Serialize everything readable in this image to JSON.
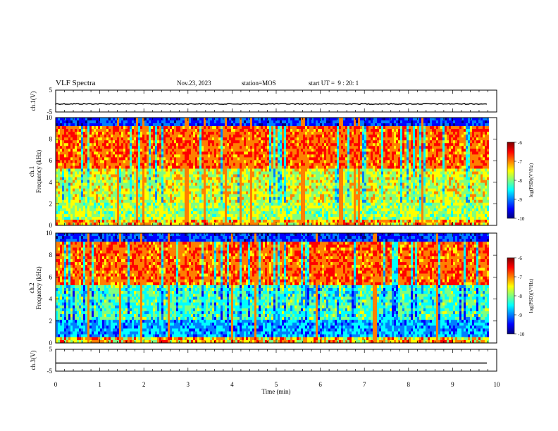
{
  "header": {
    "title": "VLF Spectra",
    "date": "Nov.23, 2023",
    "station": "station=MOS",
    "start_ut": "start UT =  9 : 20: 1"
  },
  "chart_data": [
    {
      "type": "line",
      "panel": "ch1-waveform",
      "ylabel": "ch.1(V)",
      "ylim": [
        -5,
        5
      ],
      "yticks": [
        "5",
        "-5"
      ],
      "series": [
        {
          "baseline": -1.3
        }
      ],
      "xlim": [
        0,
        10
      ]
    },
    {
      "type": "heatmap",
      "panel": "ch1-spectrogram",
      "ylabel_line1": "ch.1",
      "ylabel_line2": "Frequency (kHz)",
      "ylim": [
        0,
        10
      ],
      "yticks": [
        "0",
        "2",
        "4",
        "6",
        "8",
        "10"
      ],
      "xlim": [
        0,
        10
      ],
      "data_end_min": 9.8,
      "colorbar": {
        "label": "log(PSD)(V²/Hz)",
        "range": [
          -10,
          -6
        ],
        "ticks": [
          "-6",
          "-7",
          "-8",
          "-9",
          "-10"
        ]
      }
    },
    {
      "type": "heatmap",
      "panel": "ch2-spectrogram",
      "ylabel_line1": "ch.2",
      "ylabel_line2": "Frequency (kHz)",
      "ylim": [
        0,
        10
      ],
      "yticks": [
        "0",
        "2",
        "4",
        "6",
        "8",
        "10"
      ],
      "xlim": [
        0,
        10
      ],
      "data_end_min": 9.8,
      "colorbar": {
        "label": "log(PSD)(V²/Hz)",
        "range": [
          -10,
          -6
        ],
        "ticks": [
          "-6",
          "-7",
          "-8",
          "-9",
          "-10"
        ]
      }
    },
    {
      "type": "line",
      "panel": "ch3-waveform",
      "ylabel": "ch.3(V)",
      "ylim": [
        -5,
        5
      ],
      "yticks": [
        "5",
        "-5"
      ],
      "series": [
        {
          "baseline": -1.3
        }
      ],
      "xlim": [
        0,
        10
      ],
      "xlabel": "Time (min)",
      "xticks": [
        "0",
        "1",
        "2",
        "3",
        "4",
        "5",
        "6",
        "7",
        "8",
        "9",
        "10"
      ]
    }
  ],
  "colors": {
    "jet": [
      "#00007f",
      "#0000ff",
      "#007fff",
      "#00ffff",
      "#7fff7f",
      "#ffff00",
      "#ff7f00",
      "#ff0000",
      "#7f0000"
    ],
    "axis": "#000000"
  }
}
